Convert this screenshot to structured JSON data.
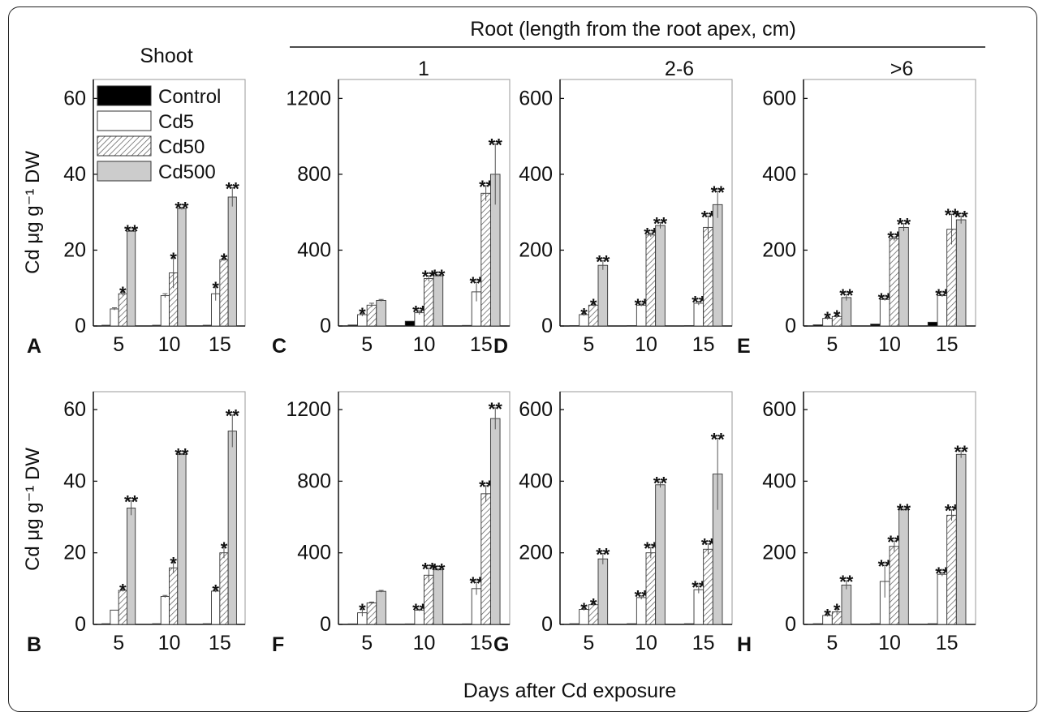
{
  "figure": {
    "header_shoot": "Shoot",
    "header_root": "Root (length from the root apex, cm)",
    "x_label": "Days after Cd exposure",
    "y_label": "Cd μg g⁻¹ DW",
    "colors": {
      "Control": "#000000",
      "Cd5": "#ffffff",
      "Cd50": "hatch",
      "Cd500": "#cccccc"
    }
  },
  "chart_data": [
    {
      "type": "bar",
      "panel": "A",
      "column_title": "",
      "categories": [
        "5",
        "10",
        "15"
      ],
      "ylim": [
        0,
        65
      ],
      "yticks": [
        0,
        20,
        40,
        60
      ],
      "legend": {
        "entries": [
          "Control",
          "Cd5",
          "Cd50",
          "Cd500"
        ],
        "position": "top-left"
      },
      "series": [
        {
          "name": "Control",
          "values": [
            0.2,
            0.2,
            0.2
          ],
          "errors": [
            0,
            0,
            0
          ],
          "marks": [
            "",
            "",
            ""
          ]
        },
        {
          "name": "Cd5",
          "values": [
            4.5,
            8,
            8.5
          ],
          "errors": [
            0.3,
            0.5,
            1.8
          ],
          "marks": [
            "",
            "",
            "*"
          ]
        },
        {
          "name": "Cd50",
          "values": [
            8.5,
            14,
            17.5
          ],
          "errors": [
            0.5,
            4,
            0.3
          ],
          "marks": [
            "*",
            "*",
            "*"
          ]
        },
        {
          "name": "Cd500",
          "values": [
            25,
            31,
            34
          ],
          "errors": [
            0.2,
            0.3,
            2.5
          ],
          "marks": [
            "**",
            "**",
            "**"
          ]
        }
      ]
    },
    {
      "type": "bar",
      "panel": "C",
      "column_title": "1",
      "categories": [
        "5",
        "10",
        "15"
      ],
      "ylim": [
        0,
        1300
      ],
      "yticks": [
        0,
        400,
        800,
        1200
      ],
      "series": [
        {
          "name": "Control",
          "values": [
            5,
            25,
            3
          ],
          "errors": [
            0,
            0,
            0
          ],
          "marks": [
            "",
            "",
            ""
          ]
        },
        {
          "name": "Cd5",
          "values": [
            60,
            70,
            180
          ],
          "errors": [
            8,
            10,
            50
          ],
          "marks": [
            "*",
            "**",
            "**"
          ]
        },
        {
          "name": "Cd50",
          "values": [
            110,
            250,
            700
          ],
          "errors": [
            10,
            15,
            40
          ],
          "marks": [
            "",
            "**",
            "**"
          ]
        },
        {
          "name": "Cd500",
          "values": [
            135,
            265,
            800
          ],
          "errors": [
            5,
            5,
            160
          ],
          "marks": [
            "",
            "**",
            "**"
          ]
        }
      ]
    },
    {
      "type": "bar",
      "panel": "D",
      "column_title": "2-6",
      "categories": [
        "5",
        "10",
        "15"
      ],
      "ylim": [
        0,
        650
      ],
      "yticks": [
        0,
        200,
        400,
        600
      ],
      "series": [
        {
          "name": "Control",
          "values": [
            1,
            1,
            1
          ],
          "errors": [
            0,
            0,
            0
          ],
          "marks": [
            "",
            "",
            ""
          ]
        },
        {
          "name": "Cd5",
          "values": [
            30,
            55,
            60
          ],
          "errors": [
            3,
            3,
            5
          ],
          "marks": [
            "*",
            "**",
            "**"
          ]
        },
        {
          "name": "Cd50",
          "values": [
            55,
            240,
            260
          ],
          "errors": [
            3,
            5,
            30
          ],
          "marks": [
            "*",
            "**",
            "**"
          ]
        },
        {
          "name": "Cd500",
          "values": [
            160,
            265,
            320
          ],
          "errors": [
            12,
            8,
            35
          ],
          "marks": [
            "**",
            "**",
            "**"
          ]
        }
      ]
    },
    {
      "type": "bar",
      "panel": "E",
      "column_title": ">6",
      "categories": [
        "5",
        "10",
        "15"
      ],
      "ylim": [
        0,
        650
      ],
      "yticks": [
        0,
        200,
        400,
        600
      ],
      "series": [
        {
          "name": "Control",
          "values": [
            3,
            5,
            10
          ],
          "errors": [
            0,
            0,
            0
          ],
          "marks": [
            "",
            "",
            ""
          ]
        },
        {
          "name": "Cd5",
          "values": [
            20,
            70,
            80
          ],
          "errors": [
            3,
            3,
            3
          ],
          "marks": [
            "*",
            "**",
            "**"
          ]
        },
        {
          "name": "Cd50",
          "values": [
            25,
            230,
            255
          ],
          "errors": [
            3,
            5,
            40
          ],
          "marks": [
            "*",
            "**",
            "**"
          ]
        },
        {
          "name": "Cd500",
          "values": [
            75,
            260,
            280
          ],
          "errors": [
            8,
            10,
            10
          ],
          "marks": [
            "**",
            "**",
            "**"
          ]
        }
      ]
    },
    {
      "type": "bar",
      "panel": "B",
      "column_title": "",
      "categories": [
        "5",
        "10",
        "15"
      ],
      "ylim": [
        0,
        65
      ],
      "yticks": [
        0,
        20,
        40,
        60
      ],
      "series": [
        {
          "name": "Control",
          "values": [
            0.2,
            0.2,
            0.2
          ],
          "errors": [
            0,
            0,
            0
          ],
          "marks": [
            "",
            "",
            ""
          ]
        },
        {
          "name": "Cd5",
          "values": [
            4,
            7.8,
            9.3
          ],
          "errors": [
            0,
            0.3,
            0.3
          ],
          "marks": [
            "",
            "",
            "*"
          ]
        },
        {
          "name": "Cd50",
          "values": [
            9.5,
            15.8,
            20
          ],
          "errors": [
            0.3,
            1.5,
            1.5
          ],
          "marks": [
            "*",
            "*",
            "*"
          ]
        },
        {
          "name": "Cd500",
          "values": [
            32.5,
            47.5,
            54
          ],
          "errors": [
            2,
            0.2,
            4.5
          ],
          "marks": [
            "**",
            "**",
            "**"
          ]
        }
      ]
    },
    {
      "type": "bar",
      "panel": "F",
      "column_title": "",
      "categories": [
        "5",
        "10",
        "15"
      ],
      "ylim": [
        0,
        1300
      ],
      "yticks": [
        0,
        400,
        800,
        1200
      ],
      "series": [
        {
          "name": "Control",
          "values": [
            3,
            3,
            3
          ],
          "errors": [
            0,
            0,
            0
          ],
          "marks": [
            "",
            "",
            ""
          ]
        },
        {
          "name": "Cd5",
          "values": [
            65,
            80,
            200
          ],
          "errors": [
            20,
            5,
            35
          ],
          "marks": [
            "*",
            "**",
            "**"
          ]
        },
        {
          "name": "Cd50",
          "values": [
            120,
            275,
            730
          ],
          "errors": [
            5,
            40,
            45
          ],
          "marks": [
            "",
            "**",
            "**"
          ]
        },
        {
          "name": "Cd500",
          "values": [
            185,
            305,
            1150
          ],
          "errors": [
            5,
            5,
            60
          ],
          "marks": [
            "",
            "**",
            "**"
          ]
        }
      ]
    },
    {
      "type": "bar",
      "panel": "G",
      "column_title": "",
      "categories": [
        "5",
        "10",
        "15"
      ],
      "ylim": [
        0,
        650
      ],
      "yticks": [
        0,
        200,
        400,
        600
      ],
      "series": [
        {
          "name": "Control",
          "values": [
            2,
            2,
            2
          ],
          "errors": [
            0,
            0,
            0
          ],
          "marks": [
            "",
            "",
            ""
          ]
        },
        {
          "name": "Cd5",
          "values": [
            42,
            75,
            97
          ],
          "errors": [
            3,
            5,
            10
          ],
          "marks": [
            "*",
            "**",
            "**"
          ]
        },
        {
          "name": "Cd50",
          "values": [
            55,
            200,
            210
          ],
          "errors": [
            3,
            15,
            15
          ],
          "marks": [
            "*",
            "**",
            "**"
          ]
        },
        {
          "name": "Cd500",
          "values": [
            183,
            390,
            420
          ],
          "errors": [
            15,
            8,
            100
          ],
          "marks": [
            "**",
            "**",
            "**"
          ]
        }
      ]
    },
    {
      "type": "bar",
      "panel": "H",
      "column_title": "",
      "categories": [
        "5",
        "10",
        "15"
      ],
      "ylim": [
        0,
        650
      ],
      "yticks": [
        0,
        200,
        400,
        600
      ],
      "series": [
        {
          "name": "Control",
          "values": [
            2,
            2,
            2
          ],
          "errors": [
            0,
            0,
            0
          ],
          "marks": [
            "",
            "",
            ""
          ]
        },
        {
          "name": "Cd5",
          "values": [
            25,
            120,
            140
          ],
          "errors": [
            3,
            45,
            5
          ],
          "marks": [
            "*",
            "**",
            "**"
          ]
        },
        {
          "name": "Cd50",
          "values": [
            35,
            218,
            305
          ],
          "errors": [
            8,
            15,
            15
          ],
          "marks": [
            "*",
            "**",
            "**"
          ]
        },
        {
          "name": "Cd500",
          "values": [
            110,
            320,
            475
          ],
          "errors": [
            12,
            2,
            10
          ],
          "marks": [
            "**",
            "**",
            "**"
          ]
        }
      ]
    }
  ]
}
